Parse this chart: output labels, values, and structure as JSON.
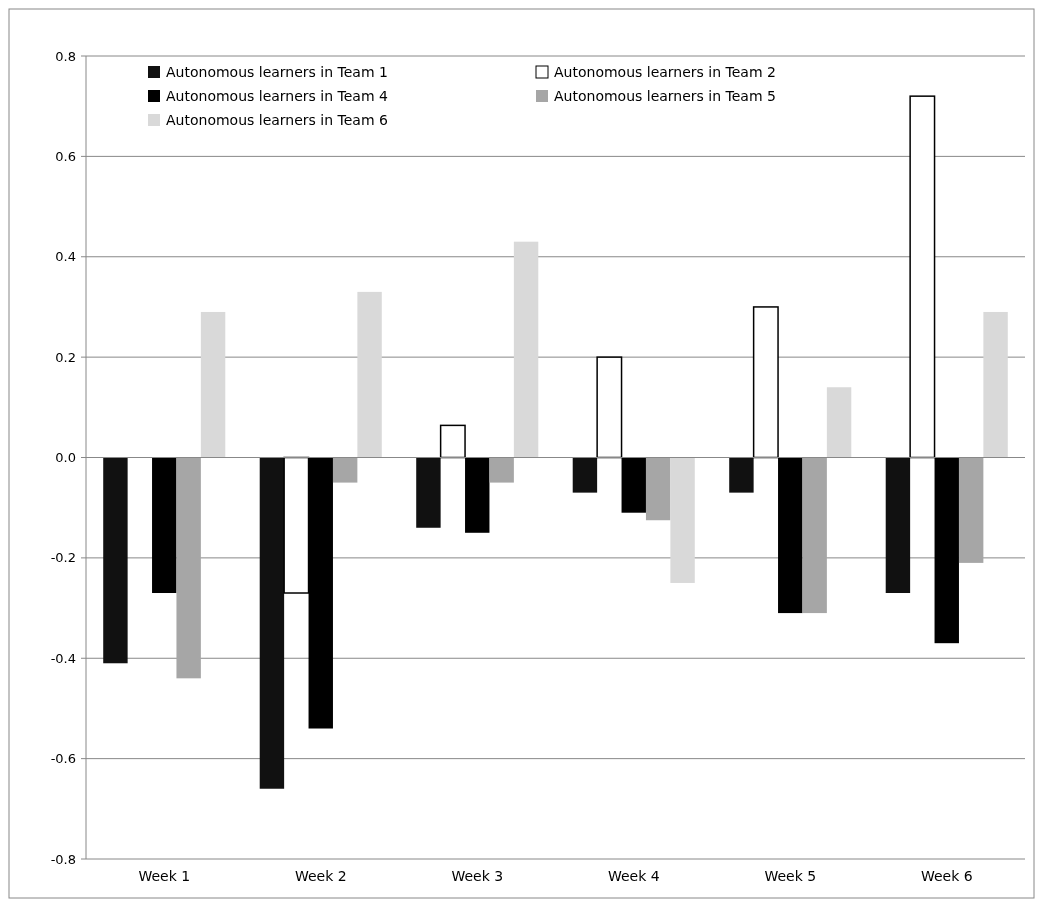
{
  "chart_data": {
    "type": "bar",
    "categories": [
      "Week 1",
      "Week 2",
      "Week 3",
      "Week 4",
      "Week 5",
      "Week 6"
    ],
    "series": [
      {
        "name": "Autonomous learners in Team  1",
        "color": "#111111",
        "values": [
          -0.41,
          -0.66,
          -0.14,
          -0.07,
          -0.07,
          -0.27
        ]
      },
      {
        "name": "Autonomous learners in Team  2",
        "color": "#ffffff",
        "values": [
          0,
          -0.27,
          0.064,
          0.2,
          0.3,
          0.72
        ]
      },
      {
        "name": "Autonomous learners in Team  4",
        "color": "#000000",
        "values": [
          -0.27,
          -0.54,
          -0.15,
          -0.11,
          -0.31,
          -0.37
        ]
      },
      {
        "name": "Autonomous learners in Team  5",
        "color": "#a6a6a6",
        "values": [
          -0.44,
          -0.05,
          -0.05,
          -0.125,
          -0.31,
          -0.21
        ]
      },
      {
        "name": "Autonomous learners in Team   6",
        "color": "#d9d9d9",
        "values": [
          0.29,
          0.33,
          0.43,
          -0.25,
          0.14,
          0.29
        ]
      }
    ],
    "ylim": [
      -0.8,
      0.8
    ],
    "yticks": [
      {
        "value": -0.8,
        "label": "-0.8"
      },
      {
        "value": -0.6,
        "label": "-0.6"
      },
      {
        "value": -0.4,
        "label": "-0.4"
      },
      {
        "value": -0.2,
        "label": "-0.2"
      },
      {
        "value": 0,
        "label": "0.0"
      },
      {
        "value": 0.2,
        "label": "0.2"
      },
      {
        "value": 0.4,
        "label": "0.4"
      },
      {
        "value": 0.6,
        "label": "0.6"
      },
      {
        "value": 0.8,
        "label": "0.8"
      }
    ],
    "grid": "y",
    "legend": "top"
  }
}
